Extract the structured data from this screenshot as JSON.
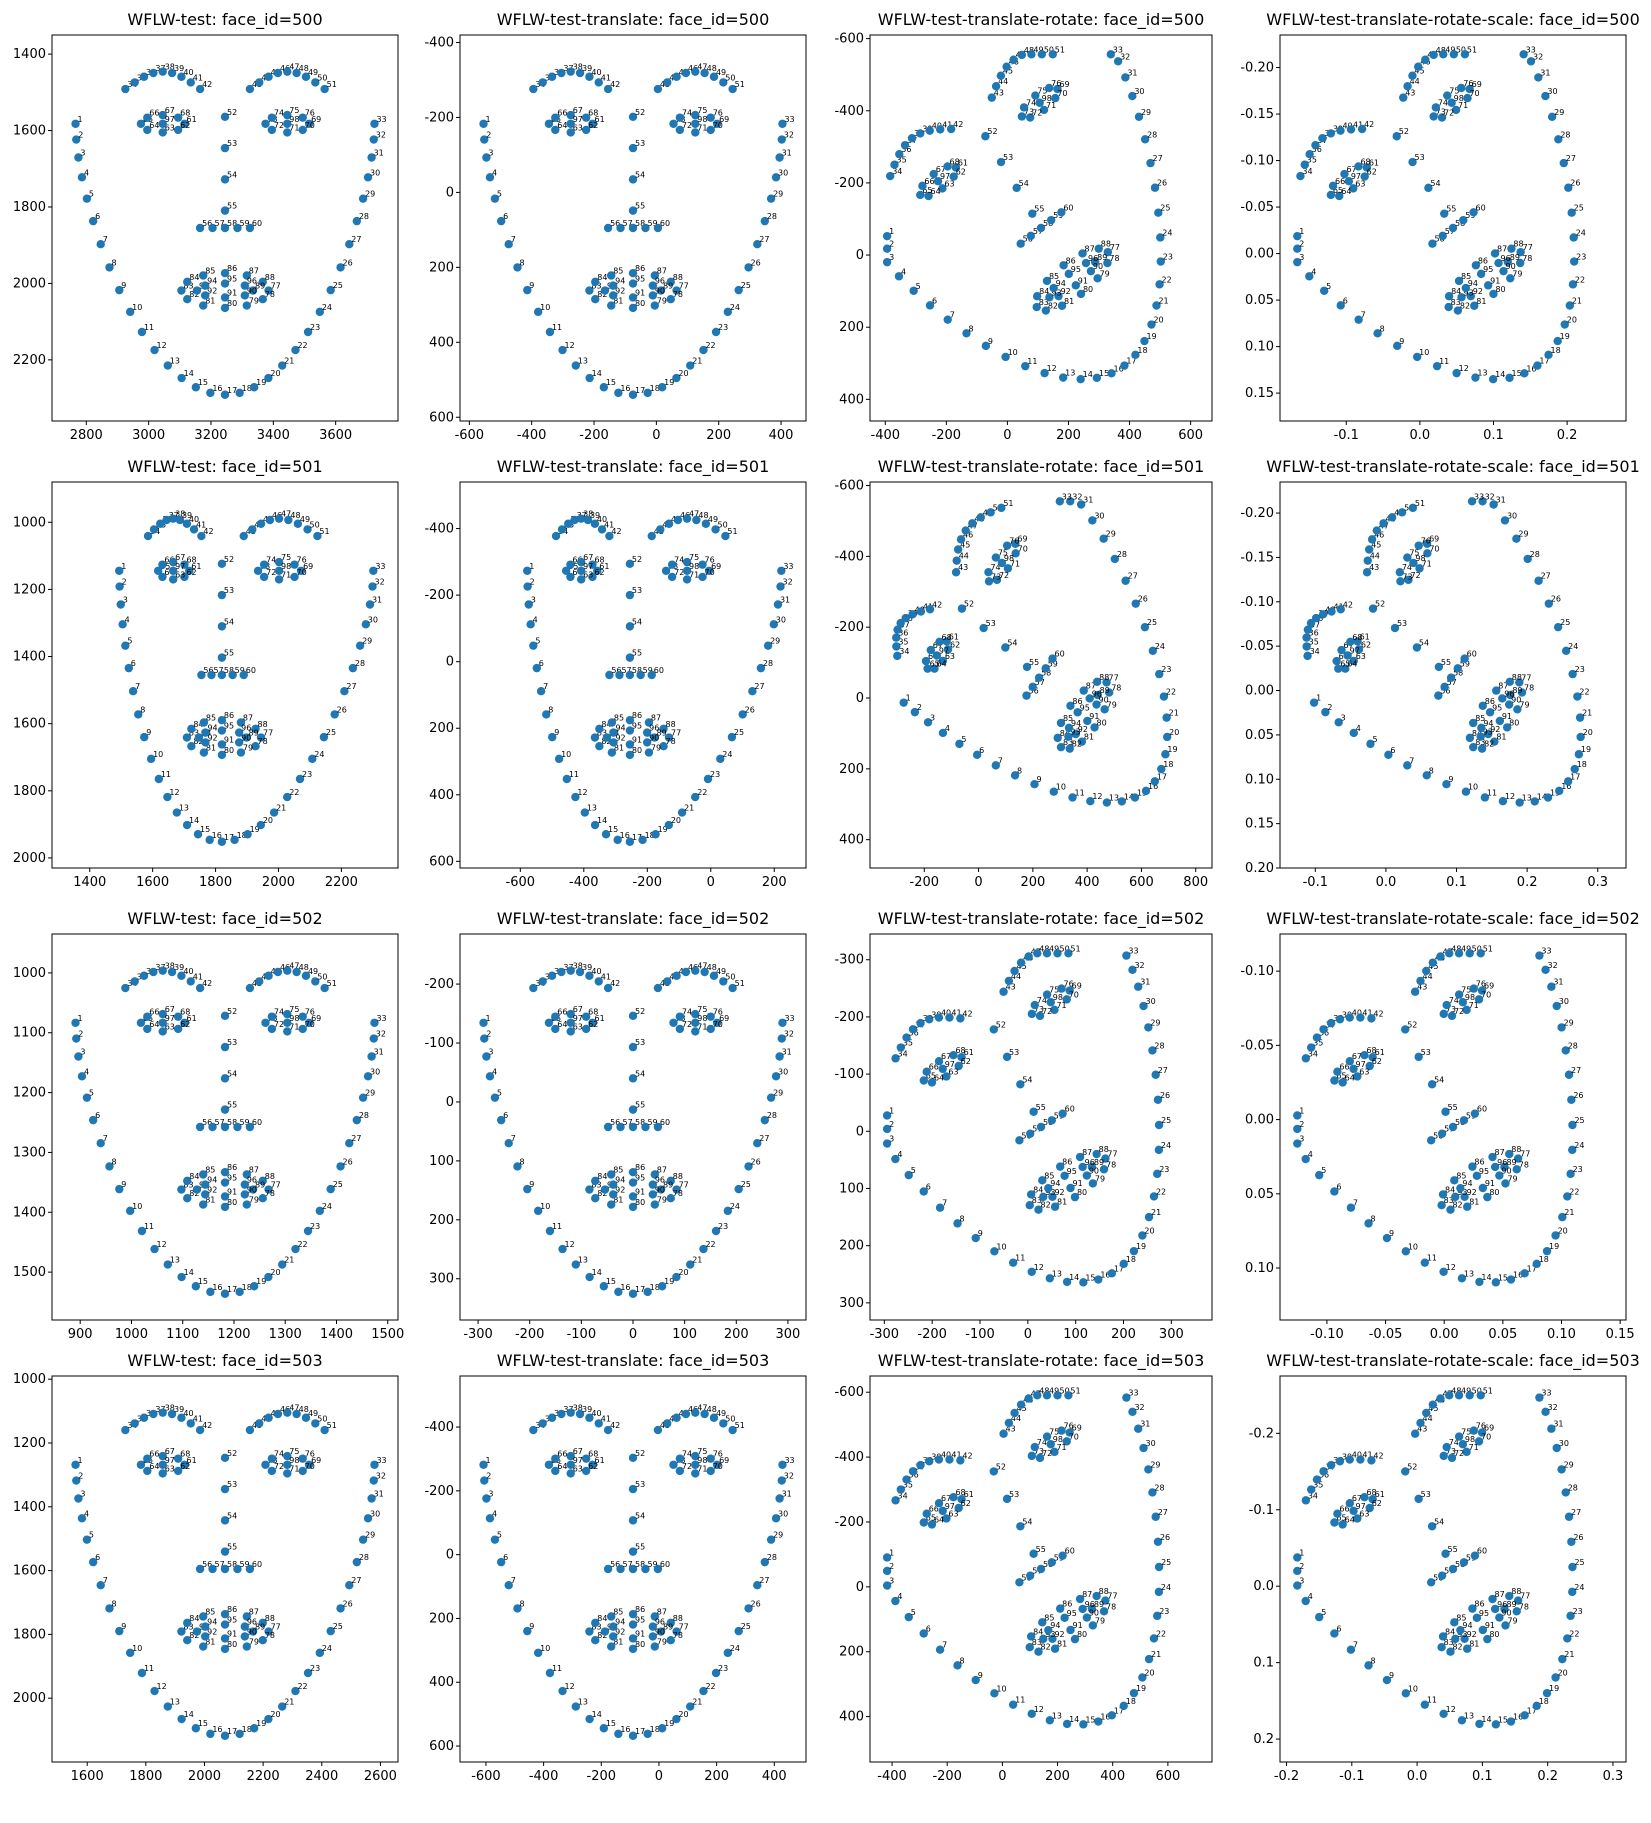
{
  "figure": {
    "rows": 4,
    "cols": 4
  },
  "chart_data": [
    {
      "type": "scatter",
      "title": "WFLW-test: face_id=500",
      "xlabel": "",
      "ylabel": "",
      "y_inverted": true,
      "xlim": [
        2690,
        3800
      ],
      "ylim": [
        2360,
        1350
      ],
      "xticks": [
        2800,
        3000,
        3200,
        3400,
        3600
      ],
      "yticks": [
        1400,
        1600,
        1800,
        2000,
        2200
      ],
      "point_color": "#1f77b4",
      "label_points": [
        1,
        5,
        10,
        15,
        20,
        25,
        30,
        35,
        40,
        45,
        50,
        55,
        60,
        65,
        70,
        75,
        80,
        85,
        90,
        95
      ]
    },
    {
      "type": "scatter",
      "title": "WFLW-test-translate: face_id=500",
      "xlabel": "",
      "ylabel": "",
      "y_inverted": true,
      "xlim": [
        -630,
        480
      ],
      "ylim": [
        610,
        -420
      ],
      "xticks": [
        -600,
        -400,
        -200,
        0,
        200,
        400
      ],
      "yticks": [
        -400,
        -200,
        0,
        200,
        400,
        600
      ],
      "point_color": "#1f77b4"
    },
    {
      "type": "scatter",
      "title": "WFLW-test-translate-rotate: face_id=500",
      "xlabel": "",
      "ylabel": "",
      "y_inverted": true,
      "xlim": [
        -450,
        670
      ],
      "ylim": [
        460,
        -610
      ],
      "xticks": [
        -400,
        -200,
        0,
        200,
        400,
        600
      ],
      "yticks": [
        -600,
        -400,
        -200,
        0,
        200,
        400
      ],
      "point_color": "#1f77b4"
    },
    {
      "type": "scatter",
      "title": "WFLW-test-translate-rotate-scale: face_id=500",
      "xlabel": "",
      "ylabel": "",
      "y_inverted": true,
      "xlim": [
        -0.19,
        0.28
      ],
      "ylim": [
        0.18,
        -0.235
      ],
      "xticks": [
        "-0.1",
        "0.0",
        "0.1",
        "0.2"
      ],
      "yticks": [
        "-0.20",
        "-0.15",
        "-0.10",
        "-0.05",
        "0.00",
        "0.05",
        "0.10",
        "0.15"
      ],
      "point_color": "#1f77b4"
    },
    {
      "type": "scatter",
      "title": "WFLW-test: face_id=501",
      "xlabel": "",
      "ylabel": "",
      "y_inverted": true,
      "xlim": [
        1280,
        2380
      ],
      "ylim": [
        2030,
        880
      ],
      "xticks": [
        1400,
        1600,
        1800,
        2000,
        2200
      ],
      "yticks": [
        1000,
        1200,
        1400,
        1600,
        1800,
        2000
      ],
      "point_color": "#1f77b4"
    },
    {
      "type": "scatter",
      "title": "WFLW-test-translate: face_id=501",
      "xlabel": "",
      "ylabel": "",
      "y_inverted": true,
      "xlim": [
        -790,
        300
      ],
      "ylim": [
        620,
        -540
      ],
      "xticks": [
        -600,
        -400,
        -200,
        0,
        200
      ],
      "yticks": [
        -400,
        -200,
        0,
        200,
        400,
        600
      ],
      "point_color": "#1f77b4"
    },
    {
      "type": "scatter",
      "title": "WFLW-test-translate-rotate: face_id=501",
      "xlabel": "",
      "ylabel": "",
      "y_inverted": true,
      "xlim": [
        -400,
        860
      ],
      "ylim": [
        480,
        -610
      ],
      "xticks": [
        -200,
        0,
        200,
        400,
        600,
        800
      ],
      "yticks": [
        -600,
        -400,
        -200,
        0,
        200,
        400
      ],
      "point_color": "#1f77b4"
    },
    {
      "type": "scatter",
      "title": "WFLW-test-translate-rotate-scale: face_id=501",
      "xlabel": "",
      "ylabel": "",
      "y_inverted": true,
      "xlim": [
        -0.15,
        0.34
      ],
      "ylim": [
        0.2,
        -0.235
      ],
      "xticks": [
        "-0.1",
        "0.0",
        "0.1",
        "0.2",
        "0.3"
      ],
      "yticks": [
        "-0.20",
        "-0.15",
        "-0.10",
        "-0.05",
        "0.00",
        "0.05",
        "0.10",
        "0.15",
        "0.20"
      ],
      "point_color": "#1f77b4"
    },
    {
      "type": "scatter",
      "title": "WFLW-test: face_id=502",
      "xlabel": "",
      "ylabel": "",
      "y_inverted": true,
      "xlim": [
        845,
        1520
      ],
      "ylim": [
        1580,
        935
      ],
      "xticks": [
        900,
        1000,
        1100,
        1200,
        1300,
        1400,
        1500
      ],
      "yticks": [
        1000,
        1100,
        1200,
        1300,
        1400,
        1500
      ],
      "point_color": "#1f77b4"
    },
    {
      "type": "scatter",
      "title": "WFLW-test-translate: face_id=502",
      "xlabel": "",
      "ylabel": "",
      "y_inverted": true,
      "xlim": [
        -335,
        335
      ],
      "ylim": [
        370,
        -285
      ],
      "xticks": [
        -300,
        -200,
        -100,
        0,
        100,
        200,
        300
      ],
      "yticks": [
        -200,
        -100,
        0,
        100,
        200,
        300
      ],
      "point_color": "#1f77b4"
    },
    {
      "type": "scatter",
      "title": "WFLW-test-translate-rotate: face_id=502",
      "xlabel": "",
      "ylabel": "",
      "y_inverted": true,
      "xlim": [
        -330,
        385
      ],
      "ylim": [
        330,
        -345
      ],
      "xticks": [
        -300,
        -200,
        -100,
        0,
        100,
        200,
        300
      ],
      "yticks": [
        -300,
        -200,
        -100,
        0,
        100,
        200,
        300
      ],
      "point_color": "#1f77b4"
    },
    {
      "type": "scatter",
      "title": "WFLW-test-translate-rotate-scale: face_id=502",
      "xlabel": "",
      "ylabel": "",
      "y_inverted": true,
      "xlim": [
        -0.14,
        0.155
      ],
      "ylim": [
        0.135,
        -0.125
      ],
      "xticks": [
        "-0.10",
        "-0.05",
        "0.00",
        "0.05",
        "0.10",
        "0.15"
      ],
      "yticks": [
        "-0.10",
        "-0.05",
        "0.00",
        "0.05",
        "0.10"
      ],
      "point_color": "#1f77b4"
    },
    {
      "type": "scatter",
      "title": "WFLW-test: face_id=503",
      "xlabel": "",
      "ylabel": "",
      "y_inverted": true,
      "xlim": [
        1480,
        2660
      ],
      "ylim": [
        2200,
        990
      ],
      "xticks": [
        1600,
        1800,
        2000,
        2200,
        2400,
        2600
      ],
      "yticks": [
        1000,
        1200,
        1400,
        1600,
        1800,
        2000
      ],
      "point_color": "#1f77b4"
    },
    {
      "type": "scatter",
      "title": "WFLW-test-translate: face_id=503",
      "xlabel": "",
      "ylabel": "",
      "y_inverted": true,
      "xlim": [
        -690,
        510
      ],
      "ylim": [
        650,
        -560
      ],
      "xticks": [
        -600,
        -400,
        -200,
        0,
        200,
        400
      ],
      "yticks": [
        -400,
        -200,
        0,
        200,
        400,
        600
      ],
      "point_color": "#1f77b4"
    },
    {
      "type": "scatter",
      "title": "WFLW-test-translate-rotate: face_id=503",
      "xlabel": "",
      "ylabel": "",
      "y_inverted": true,
      "xlim": [
        -480,
        760
      ],
      "ylim": [
        540,
        -650
      ],
      "xticks": [
        -400,
        -200,
        0,
        200,
        400,
        600
      ],
      "yticks": [
        -600,
        -400,
        -200,
        0,
        200,
        400
      ],
      "point_color": "#1f77b4"
    },
    {
      "type": "scatter",
      "title": "WFLW-test-translate-rotate-scale: face_id=503",
      "xlabel": "",
      "ylabel": "",
      "y_inverted": true,
      "xlim": [
        -0.21,
        0.32
      ],
      "ylim": [
        0.23,
        -0.275
      ],
      "xticks": [
        "-0.2",
        "-0.1",
        "0.0",
        "0.1",
        "0.2",
        "0.3"
      ],
      "yticks": [
        "-0.2",
        "-0.1",
        "0.0",
        "0.1",
        "0.2"
      ],
      "point_color": "#1f77b4"
    }
  ]
}
